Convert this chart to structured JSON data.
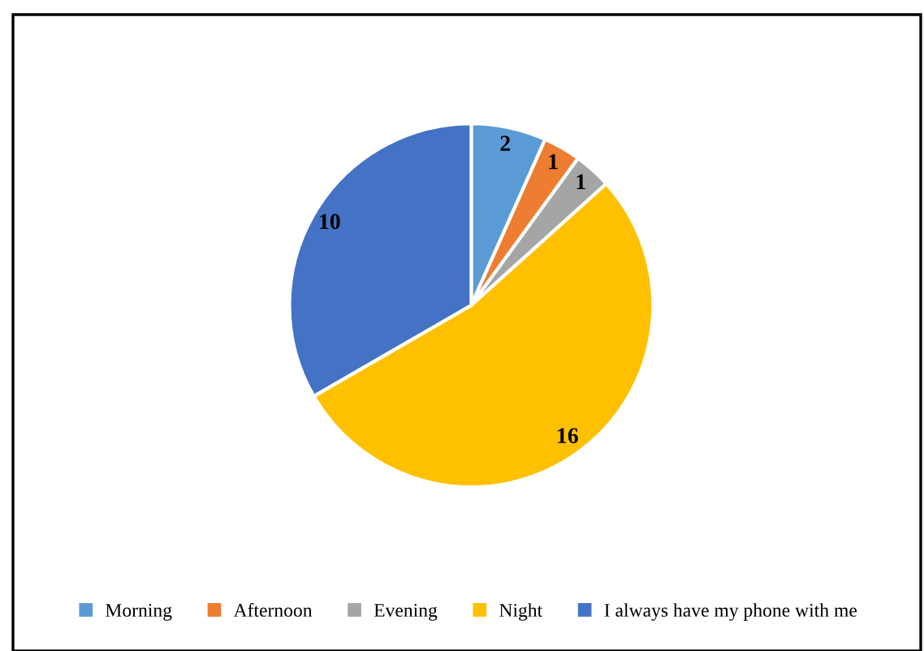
{
  "chart_data": {
    "type": "pie",
    "categories": [
      "Morning",
      "Afternoon",
      "Evening",
      "Night",
      "I always have my phone with me"
    ],
    "values": [
      2,
      1,
      1,
      16,
      10
    ],
    "colors": [
      "#5b9bd5",
      "#ed7d31",
      "#a5a5a5",
      "#ffc000",
      "#4472c4"
    ],
    "data_labels": true,
    "legend": "bottom"
  }
}
